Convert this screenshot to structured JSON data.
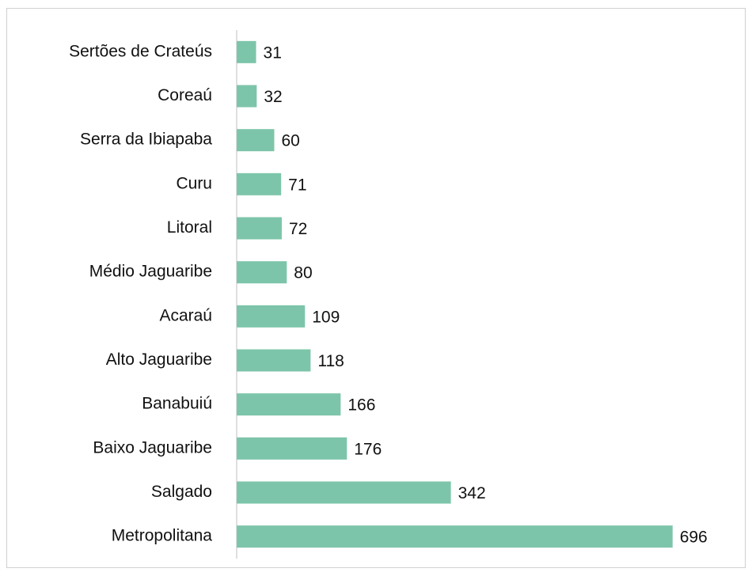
{
  "chart_data": {
    "type": "barh",
    "categories": [
      "Sertões de Crateús",
      "Coreaú",
      "Serra da Ibiapaba",
      "Curu",
      "Litoral",
      "Médio Jaguaribe",
      "Acaraú",
      "Alto Jaguaribe",
      "Banabuiú",
      "Baixo Jaguaribe",
      "Salgado",
      "Metropolitana"
    ],
    "values": [
      31,
      32,
      60,
      71,
      72,
      80,
      109,
      118,
      166,
      176,
      342,
      696
    ],
    "color": "#7dc5aa",
    "xlim": [
      0,
      800
    ]
  }
}
